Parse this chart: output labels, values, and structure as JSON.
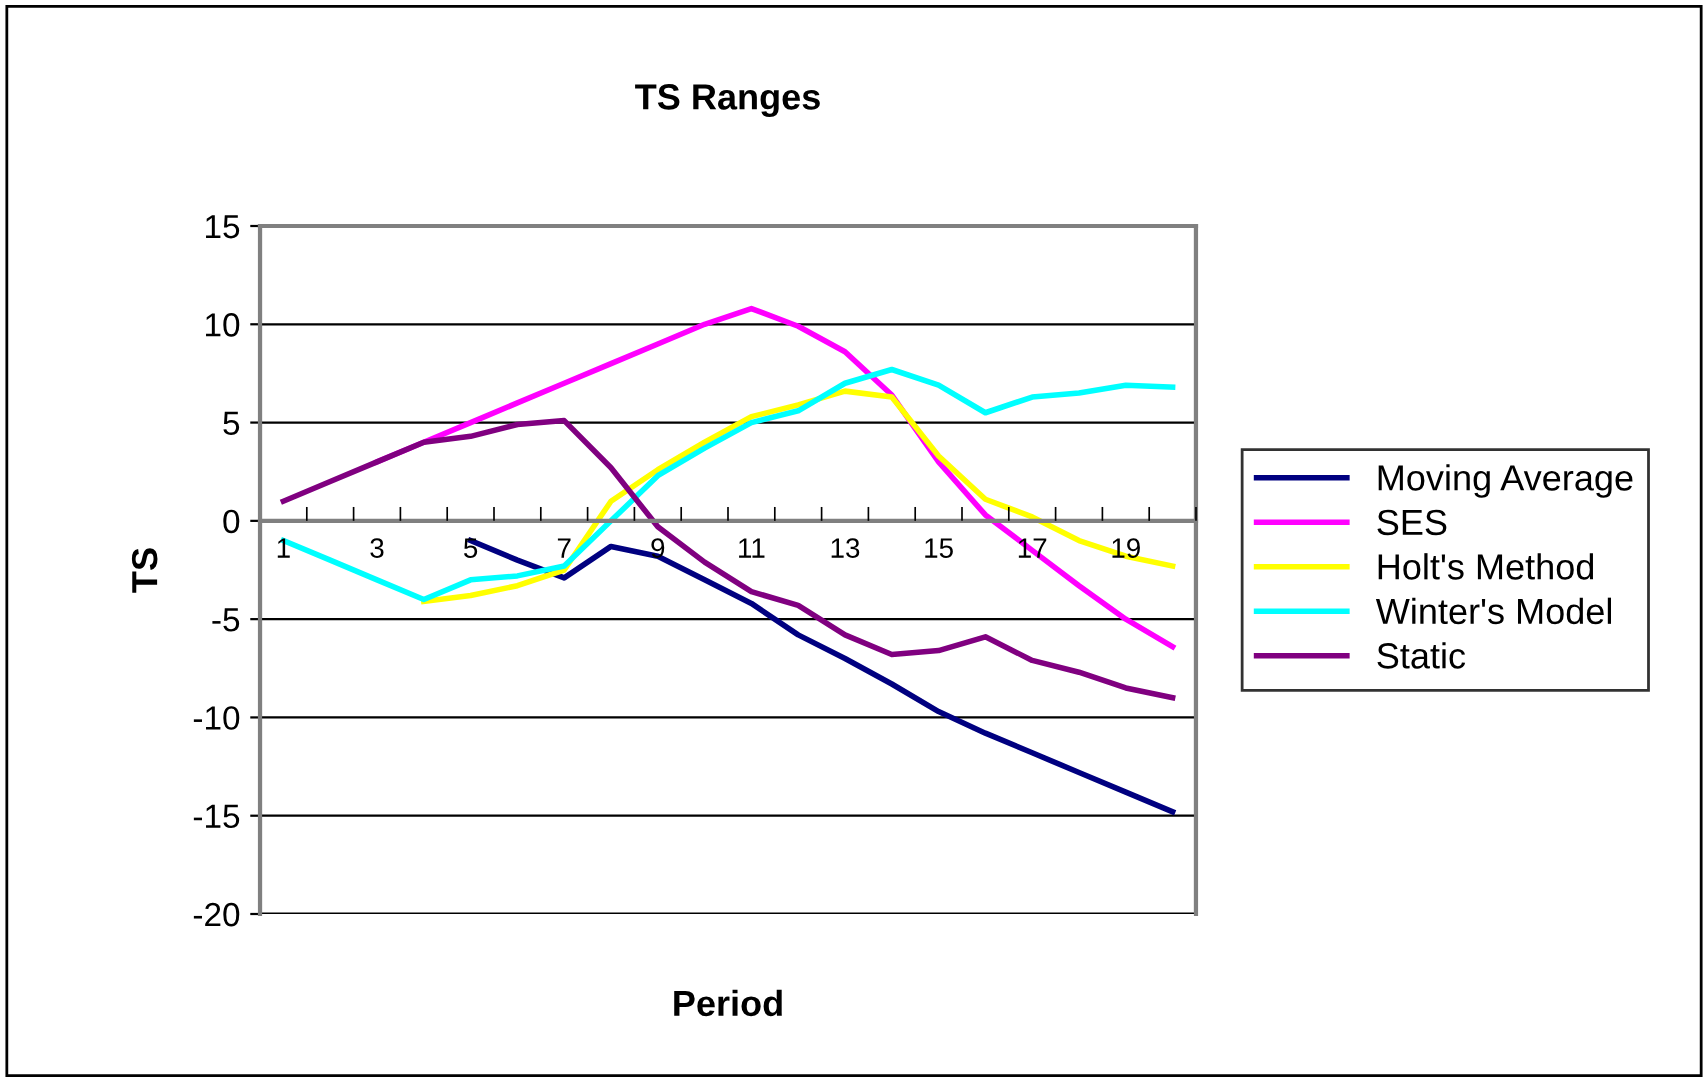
{
  "chart_data": {
    "type": "line",
    "title": "TS Ranges",
    "xlabel": "Period",
    "ylabel": "TS",
    "categories": [
      "1",
      null,
      "3",
      null,
      "5",
      null,
      "7",
      null,
      "9",
      null,
      "11",
      null,
      "13",
      null,
      "15",
      null,
      "17",
      null,
      "19",
      null
    ],
    "series": [
      {
        "name": "Moving Average",
        "color": "#000080",
        "values": [
          null,
          null,
          null,
          null,
          -1.0,
          -2.0,
          -2.9,
          -1.3,
          -1.8,
          -3.0,
          -4.2,
          -5.8,
          -7.0,
          -8.3,
          -9.7,
          -10.8,
          -11.8,
          -12.8,
          -13.8,
          -14.8
        ]
      },
      {
        "name": "SES",
        "color": "#ff00ff",
        "values": [
          null,
          null,
          3,
          4,
          5,
          6,
          7,
          8,
          9,
          10,
          10.8,
          9.9,
          8.6,
          6.4,
          3.0,
          0.3,
          -1.5,
          -3.3,
          -5.0,
          -6.4
        ]
      },
      {
        "name": "Holt's Method",
        "color": "#ffff00",
        "values": [
          null,
          null,
          null,
          -4.1,
          -3.8,
          -3.3,
          -2.5,
          1.0,
          2.6,
          4.0,
          5.3,
          5.9,
          6.6,
          6.3,
          3.3,
          1.1,
          0.2,
          -1.0,
          -1.8,
          -2.3
        ]
      },
      {
        "name": "Winter's Model",
        "color": "#00ffff",
        "values": [
          -1,
          -2,
          -3,
          -4,
          -3.0,
          -2.8,
          -2.3,
          0.0,
          2.3,
          3.7,
          5.0,
          5.6,
          7.0,
          7.7,
          6.9,
          5.5,
          6.3,
          6.5,
          6.9,
          6.8
        ]
      },
      {
        "name": "Static",
        "color": "#800080",
        "values": [
          1,
          2,
          3,
          4,
          4.3,
          4.9,
          5.1,
          2.7,
          -0.3,
          -2.1,
          -3.6,
          -4.3,
          -5.8,
          -6.8,
          -6.6,
          -5.9,
          -7.1,
          -7.7,
          -8.5,
          -9.0
        ]
      }
    ],
    "ylim": [
      -20,
      15
    ],
    "yticks": [
      -20,
      -15,
      -10,
      -5,
      0,
      5,
      10,
      15
    ],
    "grid": "y",
    "legend": "right",
    "marker": "none",
    "line_style": "solid"
  }
}
